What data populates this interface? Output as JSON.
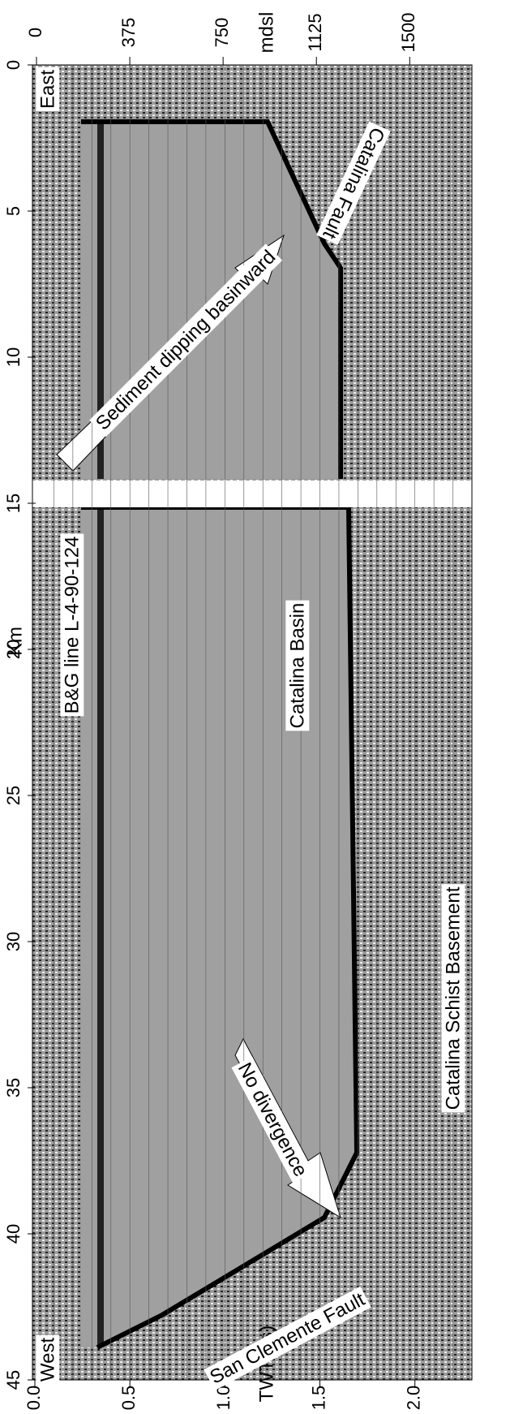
{
  "chart_data": {
    "type": "seismic-section",
    "ylabel": "Km",
    "xlabel": "TWTT(s)",
    "x2label": "mdsl",
    "ylim": [
      0,
      45
    ],
    "yticks": [
      0,
      5,
      10,
      15,
      20,
      25,
      30,
      35,
      40,
      45
    ],
    "xlim": [
      0,
      2.3
    ],
    "xticks": [
      {
        "value": 0,
        "label": "0.0"
      },
      0.5,
      {
        "value": 1,
        "label": "1.0"
      },
      1.5,
      {
        "value": 2,
        "label": "2.0"
      }
    ],
    "x2lim": [
      0,
      1750
    ],
    "x2ticks": [
      0,
      375,
      750,
      1125,
      1500
    ],
    "annotations": [
      "East",
      "West",
      "Catalina Fault",
      "Sediment dipping basinward",
      "B&G line L-4-90-124",
      "Catalina Basin",
      "No divergence",
      "Catalina Schist Basement",
      "San Clemente Fault"
    ]
  }
}
